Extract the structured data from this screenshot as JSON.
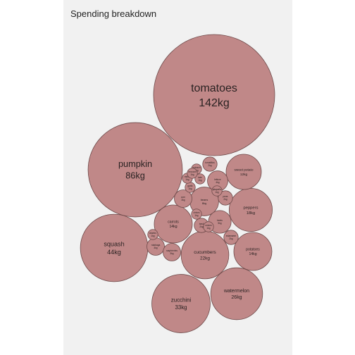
{
  "colors": {
    "bubble": "#c08888",
    "background": "#f1f1f1",
    "text": "#2a2222"
  },
  "chart_data": {
    "type": "bubble",
    "title": "Spending breakdown",
    "unit": "kg",
    "items": [
      {
        "name": "tomatoes",
        "label": "142kg",
        "value": 142
      },
      {
        "name": "pumpkin",
        "label": "86kg",
        "value": 86
      },
      {
        "name": "squash",
        "label": "44kg",
        "value": 44
      },
      {
        "name": "zucchini",
        "label": "33kg",
        "value": 33
      },
      {
        "name": "watermelon",
        "label": "26kg",
        "value": 26
      },
      {
        "name": "cucumbers",
        "label": "22kg",
        "value": 22
      },
      {
        "name": "peppers",
        "label": "18kg",
        "value": 18
      },
      {
        "name": "carrots",
        "label": "14kg",
        "value": 14
      },
      {
        "name": "potatoes",
        "label": "14kg",
        "value": 14
      },
      {
        "name": "sweet potato",
        "label": "12kg",
        "value": 12
      },
      {
        "name": "beans",
        "label": "8kg",
        "value": 8
      },
      {
        "name": "beets",
        "label": "5kg",
        "value": 5
      },
      {
        "name": "lettuce",
        "label": "4kg",
        "value": 4
      },
      {
        "name": "corn",
        "label": "3kg",
        "value": 3
      },
      {
        "name": "rutabaga",
        "label": "3kg",
        "value": 3
      },
      {
        "name": "raspberries",
        "label": "3kg",
        "value": 3
      },
      {
        "name": "tomatillos",
        "label": "2kg",
        "value": 2
      },
      {
        "name": "edamame",
        "label": "2kg",
        "value": 2
      },
      {
        "name": "peas",
        "label": "2kg",
        "value": 2
      },
      {
        "name": "basil",
        "label": "2kg",
        "value": 2
      },
      {
        "name": "kale",
        "label": "1kg",
        "value": 1
      },
      {
        "name": "garlic",
        "label": "1kg",
        "value": 1
      },
      {
        "name": "radish",
        "label": "1kg",
        "value": 1
      },
      {
        "name": "spinach",
        "label": "1kg",
        "value": 1
      },
      {
        "name": "broccoli",
        "label": "1kg",
        "value": 1
      },
      {
        "name": "chives",
        "label": "1kg",
        "value": 1
      },
      {
        "name": "onions",
        "label": "1kg",
        "value": 1
      },
      {
        "name": "jalapeño",
        "label": "1kg",
        "value": 1
      },
      {
        "name": "cilantro",
        "label": "1kg",
        "value": 1
      }
    ]
  }
}
